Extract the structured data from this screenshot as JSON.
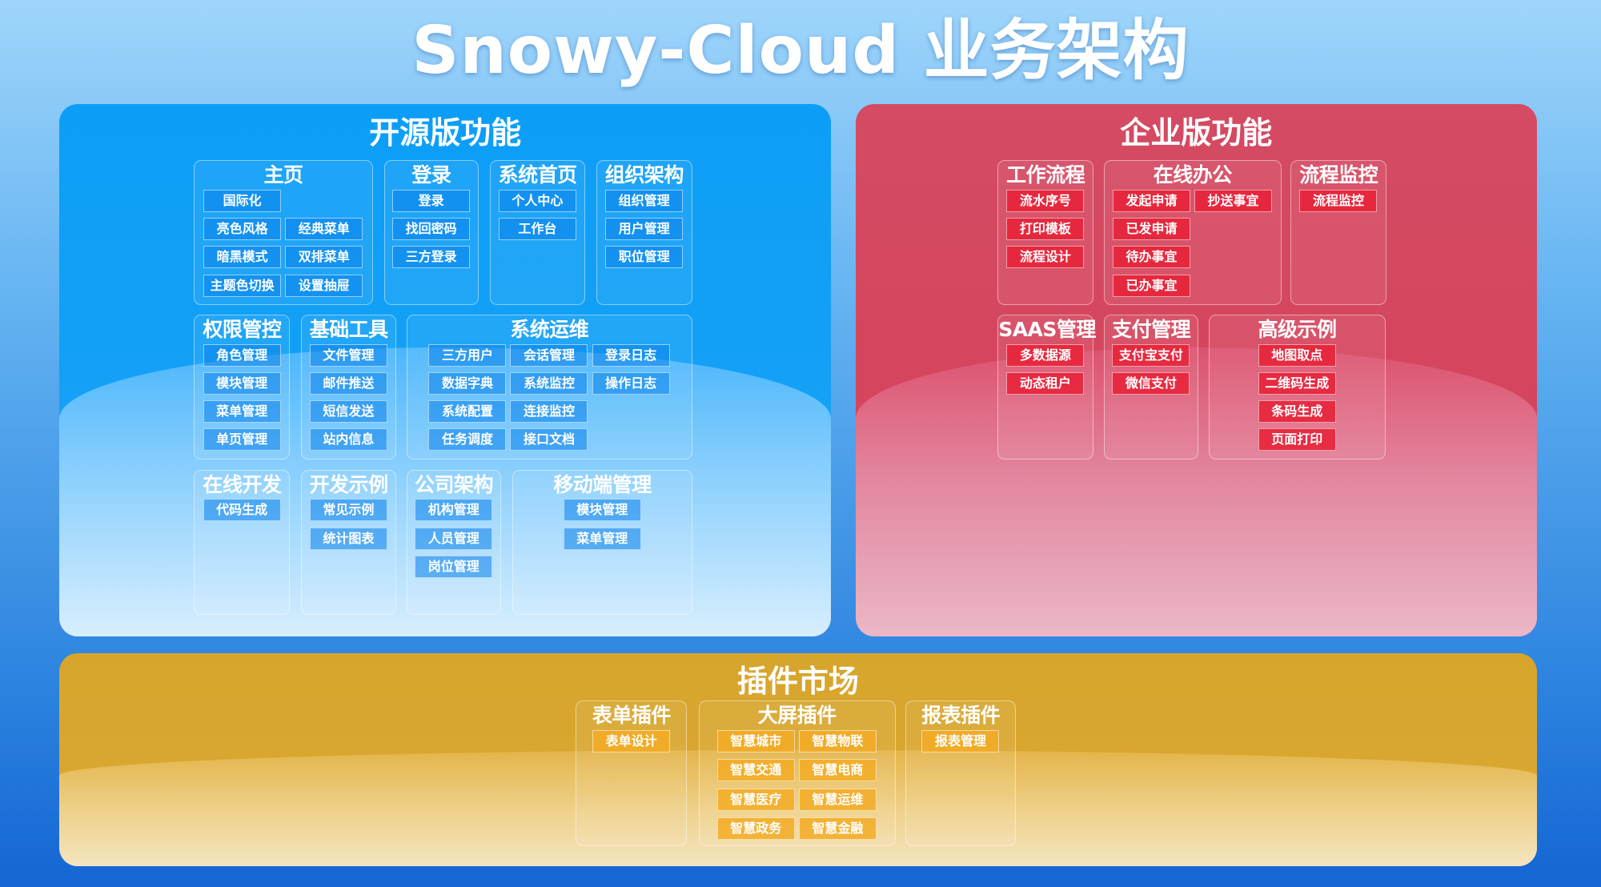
{
  "title": "Snowy-Cloud 业务架构",
  "colors": {
    "open": "#0c9ef7",
    "enterprise": "#d44b63",
    "plugins": "#d7a52c",
    "background": "#2f86e0"
  },
  "sections": {
    "open": {
      "title": "开源版功能",
      "groups": [
        {
          "title": "主页",
          "rows": [
            [
              "国际化",
              null
            ],
            [
              "亮色风格",
              "经典菜单"
            ],
            [
              "暗黑模式",
              "双排菜单"
            ],
            [
              "主题色切换",
              "设置抽屉"
            ]
          ]
        },
        {
          "title": "登录",
          "rows": [
            [
              "登录"
            ],
            [
              "找回密码"
            ],
            [
              "三方登录"
            ]
          ]
        },
        {
          "title": "系统首页",
          "rows": [
            [
              "个人中心"
            ],
            [
              "工作台"
            ]
          ]
        },
        {
          "title": "组织架构",
          "rows": [
            [
              "组织管理"
            ],
            [
              "用户管理"
            ],
            [
              "职位管理"
            ]
          ]
        },
        {
          "title": "权限管控",
          "rows": [
            [
              "角色管理"
            ],
            [
              "模块管理"
            ],
            [
              "菜单管理"
            ],
            [
              "单页管理"
            ]
          ]
        },
        {
          "title": "基础工具",
          "rows": [
            [
              "文件管理"
            ],
            [
              "邮件推送"
            ],
            [
              "短信发送"
            ],
            [
              "站内信息"
            ]
          ]
        },
        {
          "title": "系统运维",
          "rows": [
            [
              "三方用户",
              "会话管理",
              "登录日志"
            ],
            [
              "数据字典",
              "系统监控",
              "操作日志"
            ],
            [
              "系统配置",
              "连接监控",
              null
            ],
            [
              "任务调度",
              "接口文档",
              null
            ]
          ]
        },
        {
          "title": "在线开发",
          "rows": [
            [
              "代码生成"
            ]
          ]
        },
        {
          "title": "开发示例",
          "rows": [
            [
              "常见示例"
            ],
            [
              "统计图表"
            ]
          ]
        },
        {
          "title": "公司架构",
          "rows": [
            [
              "机构管理"
            ],
            [
              "人员管理"
            ],
            [
              "岗位管理"
            ]
          ]
        },
        {
          "title": "移动端管理",
          "rows": [
            [
              "模块管理"
            ],
            [
              "菜单管理"
            ]
          ]
        }
      ]
    },
    "enterprise": {
      "title": "企业版功能",
      "groups": [
        {
          "title": "工作流程",
          "rows": [
            [
              "流水序号"
            ],
            [
              "打印模板"
            ],
            [
              "流程设计"
            ]
          ]
        },
        {
          "title": "在线办公",
          "rows": [
            [
              "发起申请",
              "抄送事宜"
            ],
            [
              "已发申请",
              null
            ],
            [
              "待办事宜",
              null
            ],
            [
              "已办事宜",
              null
            ]
          ]
        },
        {
          "title": "流程监控",
          "rows": [
            [
              "流程监控"
            ]
          ]
        },
        {
          "title": "SAAS管理",
          "rows": [
            [
              "多数据源"
            ],
            [
              "动态租户"
            ]
          ]
        },
        {
          "title": "支付管理",
          "rows": [
            [
              "支付宝支付"
            ],
            [
              "微信支付"
            ]
          ]
        },
        {
          "title": "高级示例",
          "rows": [
            [
              "地图取点"
            ],
            [
              "二维码生成"
            ],
            [
              "条码生成"
            ],
            [
              "页面打印"
            ]
          ]
        }
      ]
    },
    "plugins": {
      "title": "插件市场",
      "groups": [
        {
          "title": "表单插件",
          "rows": [
            [
              "表单设计"
            ]
          ]
        },
        {
          "title": "大屏插件",
          "rows": [
            [
              "智慧城市",
              "智慧物联"
            ],
            [
              "智慧交通",
              "智慧电商"
            ],
            [
              "智慧医疗",
              "智慧运维"
            ],
            [
              "智慧政务",
              "智慧金融"
            ]
          ]
        },
        {
          "title": "报表插件",
          "rows": [
            [
              "报表管理"
            ]
          ]
        }
      ]
    }
  }
}
